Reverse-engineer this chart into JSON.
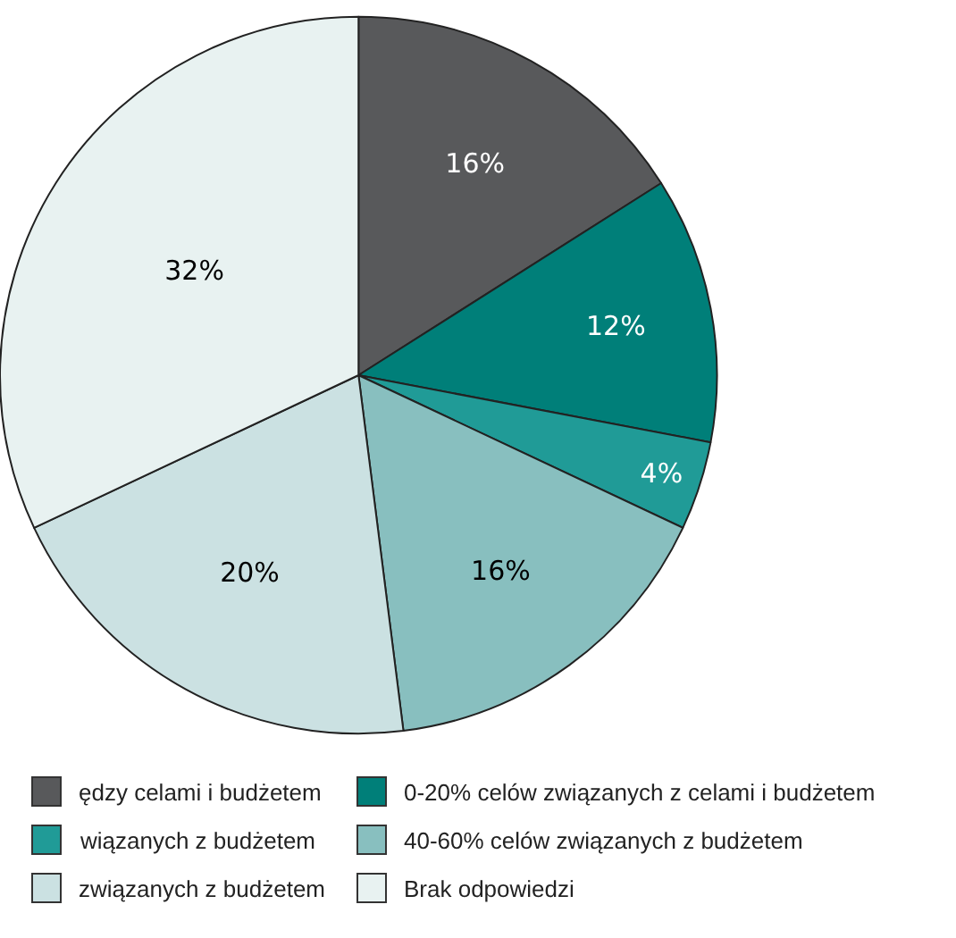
{
  "chart_data": {
    "type": "pie",
    "categories": [
      "ędzy celami i budżetem",
      "0-20% celów związanych z celami i budżetem",
      "wiązanych z budżetem",
      "40-60% celów związanych z budżetem",
      "związanych z budżetem",
      "Brak odpowiedzi"
    ],
    "values": [
      16,
      12,
      4,
      16,
      20,
      32
    ],
    "value_labels": [
      "16%",
      "12%",
      "4%",
      "16%",
      "20%",
      "32%"
    ],
    "colors": [
      "#58595b",
      "#007f79",
      "#209b97",
      "#88bfbf",
      "#cbe1e2",
      "#e8f2f1"
    ],
    "legend": "bottom"
  }
}
